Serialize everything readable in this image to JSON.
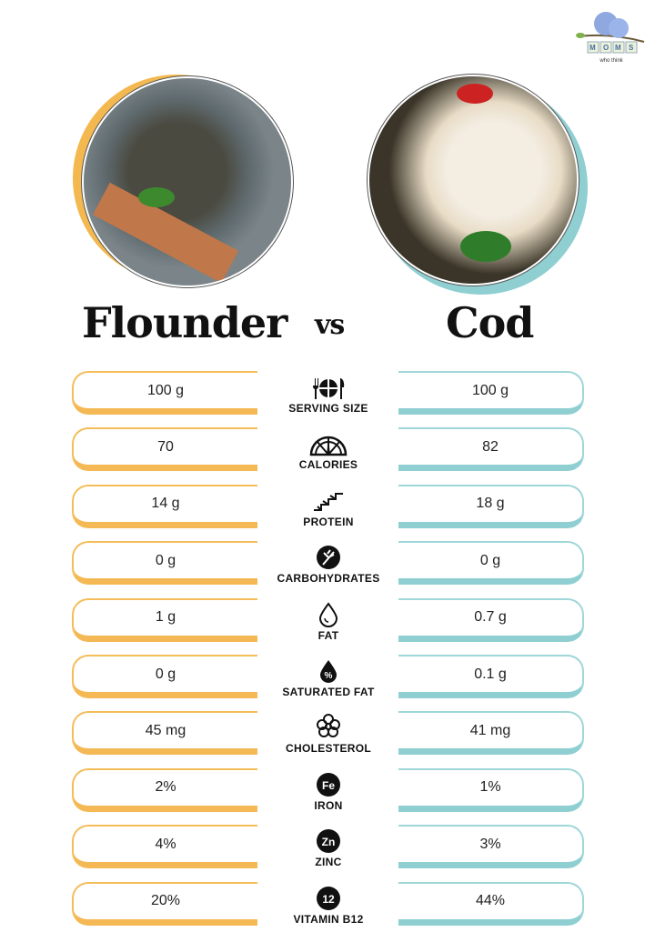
{
  "logo": {
    "text": "MOMS",
    "sub": "who think"
  },
  "left": {
    "name": "Flounder",
    "accent": "#f4b955"
  },
  "vs": "vs",
  "right": {
    "name": "Cod",
    "accent": "#8fcfd2"
  },
  "rows": [
    {
      "label": "SERVING SIZE",
      "icon": "utensils-plate-icon",
      "left": "100 g",
      "right": "100 g"
    },
    {
      "label": "CALORIES",
      "icon": "gauge-icon",
      "left": "70",
      "right": "82"
    },
    {
      "label": "PROTEIN",
      "icon": "protein-chain-icon",
      "left": "14 g",
      "right": "18 g"
    },
    {
      "label": "CARBOHYDRATES",
      "icon": "wheat-icon",
      "left": "0 g",
      "right": "0 g"
    },
    {
      "label": "FAT",
      "icon": "drop-icon",
      "left": "1 g",
      "right": "0.7 g"
    },
    {
      "label": "SATURATED FAT",
      "icon": "percent-drop-icon",
      "left": "0 g",
      "right": "0.1 g"
    },
    {
      "label": "CHOLESTEROL",
      "icon": "molecule-icon",
      "left": "45 mg",
      "right": "41 mg"
    },
    {
      "label": "IRON",
      "icon": "fe-badge-icon",
      "badge": "Fe",
      "left": "2%",
      "right": "1%"
    },
    {
      "label": "ZINC",
      "icon": "zn-badge-icon",
      "badge": "Zn",
      "left": "4%",
      "right": "3%"
    },
    {
      "label": "VITAMIN B12",
      "icon": "b12-badge-icon",
      "badge": "12",
      "left": "20%",
      "right": "44%"
    }
  ]
}
